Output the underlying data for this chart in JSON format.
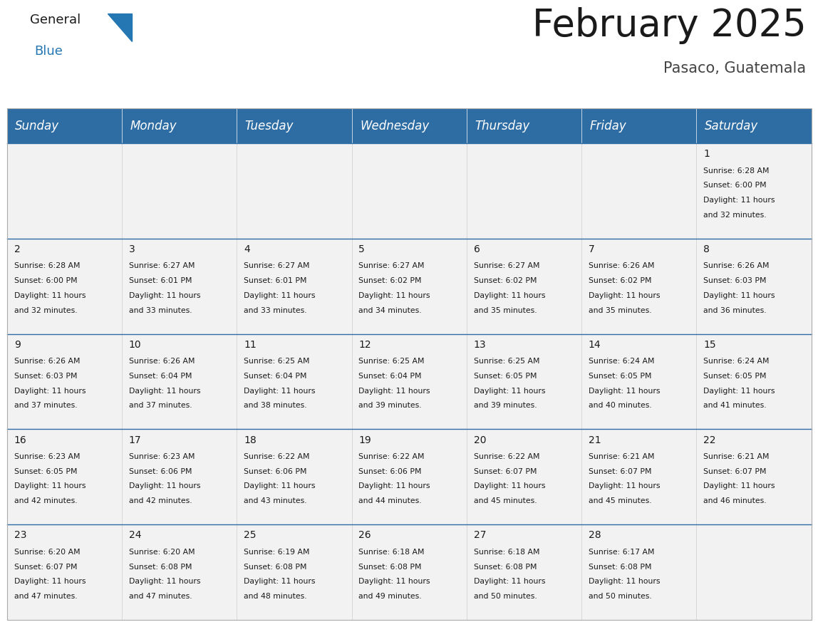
{
  "title": "February 2025",
  "subtitle": "Pasaco, Guatemala",
  "header_color": "#2E6DA4",
  "header_text_color": "#FFFFFF",
  "background_color": "#FFFFFF",
  "cell_bg_color": "#F2F2F2",
  "border_color": "#2E6DA4",
  "days_of_week": [
    "Sunday",
    "Monday",
    "Tuesday",
    "Wednesday",
    "Thursday",
    "Friday",
    "Saturday"
  ],
  "title_fontsize": 38,
  "subtitle_fontsize": 15,
  "day_header_fontsize": 12,
  "day_num_fontsize": 10,
  "cell_text_fontsize": 7.8,
  "logo_general_fontsize": 13,
  "logo_blue_fontsize": 13,
  "calendar_data": [
    [
      {
        "day": 0
      },
      {
        "day": 0
      },
      {
        "day": 0
      },
      {
        "day": 0
      },
      {
        "day": 0
      },
      {
        "day": 0
      },
      {
        "day": 1,
        "sunrise": "6:28 AM",
        "sunset": "6:00 PM",
        "daylight": "11 hours",
        "daylight2": "and 32 minutes."
      }
    ],
    [
      {
        "day": 2,
        "sunrise": "6:28 AM",
        "sunset": "6:00 PM",
        "daylight": "11 hours",
        "daylight2": "and 32 minutes."
      },
      {
        "day": 3,
        "sunrise": "6:27 AM",
        "sunset": "6:01 PM",
        "daylight": "11 hours",
        "daylight2": "and 33 minutes."
      },
      {
        "day": 4,
        "sunrise": "6:27 AM",
        "sunset": "6:01 PM",
        "daylight": "11 hours",
        "daylight2": "and 33 minutes."
      },
      {
        "day": 5,
        "sunrise": "6:27 AM",
        "sunset": "6:02 PM",
        "daylight": "11 hours",
        "daylight2": "and 34 minutes."
      },
      {
        "day": 6,
        "sunrise": "6:27 AM",
        "sunset": "6:02 PM",
        "daylight": "11 hours",
        "daylight2": "and 35 minutes."
      },
      {
        "day": 7,
        "sunrise": "6:26 AM",
        "sunset": "6:02 PM",
        "daylight": "11 hours",
        "daylight2": "and 35 minutes."
      },
      {
        "day": 8,
        "sunrise": "6:26 AM",
        "sunset": "6:03 PM",
        "daylight": "11 hours",
        "daylight2": "and 36 minutes."
      }
    ],
    [
      {
        "day": 9,
        "sunrise": "6:26 AM",
        "sunset": "6:03 PM",
        "daylight": "11 hours",
        "daylight2": "and 37 minutes."
      },
      {
        "day": 10,
        "sunrise": "6:26 AM",
        "sunset": "6:04 PM",
        "daylight": "11 hours",
        "daylight2": "and 37 minutes."
      },
      {
        "day": 11,
        "sunrise": "6:25 AM",
        "sunset": "6:04 PM",
        "daylight": "11 hours",
        "daylight2": "and 38 minutes."
      },
      {
        "day": 12,
        "sunrise": "6:25 AM",
        "sunset": "6:04 PM",
        "daylight": "11 hours",
        "daylight2": "and 39 minutes."
      },
      {
        "day": 13,
        "sunrise": "6:25 AM",
        "sunset": "6:05 PM",
        "daylight": "11 hours",
        "daylight2": "and 39 minutes."
      },
      {
        "day": 14,
        "sunrise": "6:24 AM",
        "sunset": "6:05 PM",
        "daylight": "11 hours",
        "daylight2": "and 40 minutes."
      },
      {
        "day": 15,
        "sunrise": "6:24 AM",
        "sunset": "6:05 PM",
        "daylight": "11 hours",
        "daylight2": "and 41 minutes."
      }
    ],
    [
      {
        "day": 16,
        "sunrise": "6:23 AM",
        "sunset": "6:05 PM",
        "daylight": "11 hours",
        "daylight2": "and 42 minutes."
      },
      {
        "day": 17,
        "sunrise": "6:23 AM",
        "sunset": "6:06 PM",
        "daylight": "11 hours",
        "daylight2": "and 42 minutes."
      },
      {
        "day": 18,
        "sunrise": "6:22 AM",
        "sunset": "6:06 PM",
        "daylight": "11 hours",
        "daylight2": "and 43 minutes."
      },
      {
        "day": 19,
        "sunrise": "6:22 AM",
        "sunset": "6:06 PM",
        "daylight": "11 hours",
        "daylight2": "and 44 minutes."
      },
      {
        "day": 20,
        "sunrise": "6:22 AM",
        "sunset": "6:07 PM",
        "daylight": "11 hours",
        "daylight2": "and 45 minutes."
      },
      {
        "day": 21,
        "sunrise": "6:21 AM",
        "sunset": "6:07 PM",
        "daylight": "11 hours",
        "daylight2": "and 45 minutes."
      },
      {
        "day": 22,
        "sunrise": "6:21 AM",
        "sunset": "6:07 PM",
        "daylight": "11 hours",
        "daylight2": "and 46 minutes."
      }
    ],
    [
      {
        "day": 23,
        "sunrise": "6:20 AM",
        "sunset": "6:07 PM",
        "daylight": "11 hours",
        "daylight2": "and 47 minutes."
      },
      {
        "day": 24,
        "sunrise": "6:20 AM",
        "sunset": "6:08 PM",
        "daylight": "11 hours",
        "daylight2": "and 47 minutes."
      },
      {
        "day": 25,
        "sunrise": "6:19 AM",
        "sunset": "6:08 PM",
        "daylight": "11 hours",
        "daylight2": "and 48 minutes."
      },
      {
        "day": 26,
        "sunrise": "6:18 AM",
        "sunset": "6:08 PM",
        "daylight": "11 hours",
        "daylight2": "and 49 minutes."
      },
      {
        "day": 27,
        "sunrise": "6:18 AM",
        "sunset": "6:08 PM",
        "daylight": "11 hours",
        "daylight2": "and 50 minutes."
      },
      {
        "day": 28,
        "sunrise": "6:17 AM",
        "sunset": "6:08 PM",
        "daylight": "11 hours",
        "daylight2": "and 50 minutes."
      },
      {
        "day": 0
      }
    ]
  ]
}
